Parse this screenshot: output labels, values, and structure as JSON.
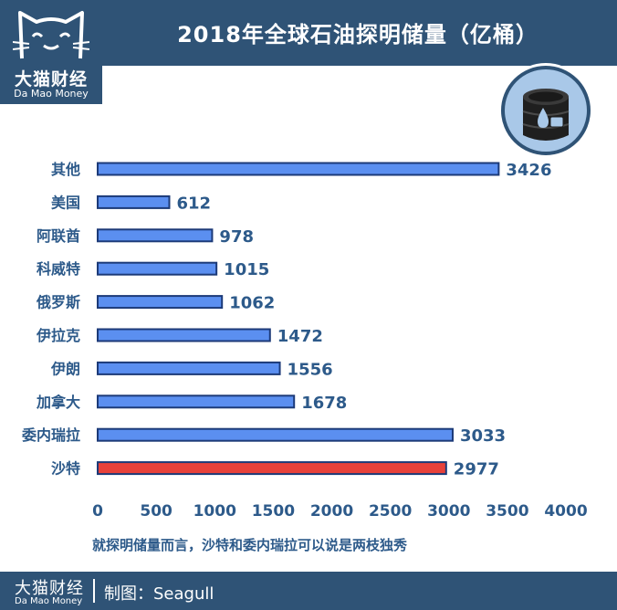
{
  "logo": {
    "cn": "大猫财经",
    "en": "Da Mao Money",
    "icon": "cat-logo-icon"
  },
  "title": "2018年全球石油探明储量（亿桶）",
  "badge": {
    "icon": "oil-barrel-icon"
  },
  "chart_data": {
    "type": "bar",
    "orientation": "horizontal",
    "categories": [
      "其他",
      "美国",
      "阿联酋",
      "科威特",
      "俄罗斯",
      "伊拉克",
      "伊朗",
      "加拿大",
      "委内瑞拉",
      "沙特"
    ],
    "values": [
      3426,
      612,
      978,
      1015,
      1062,
      1472,
      1556,
      1678,
      3033,
      2977
    ],
    "value_labels": [
      "3426",
      "612",
      "978",
      "1015",
      "1062",
      "1472",
      "1556",
      "1678",
      "3033",
      "2977"
    ],
    "highlight_category": "沙特",
    "xlim": [
      0,
      4000
    ],
    "xticks": [
      "0",
      "500",
      "1000",
      "1500",
      "2000",
      "2500",
      "3000",
      "3500",
      "4000"
    ],
    "grid": false,
    "colors": {
      "bar": "#5b8ff0",
      "bar_edge": "#1c3a78",
      "highlight": "#e8413a",
      "text": "#2d5a8a"
    }
  },
  "note": "就探明储量而言，沙特和委内瑞拉可以说是两枝独秀",
  "footer": {
    "cn": "大猫财经",
    "en": "Da Mao Money",
    "credit": "制图：Seagull"
  }
}
